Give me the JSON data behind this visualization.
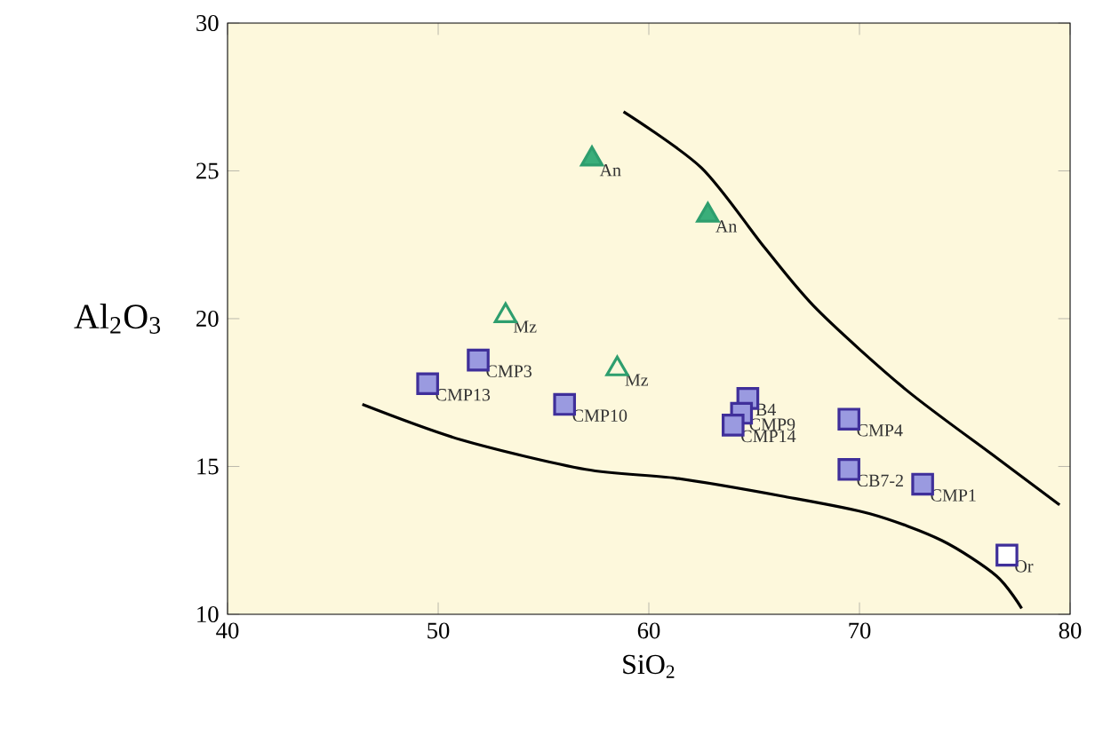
{
  "chart_data": {
    "type": "scatter",
    "xlabel": "SiO$_{2}$",
    "ylabel": "Al$_{2}$O$_{3}$",
    "xlim": [
      40,
      80
    ],
    "ylim": [
      10,
      30
    ],
    "xticks": [
      40,
      50,
      60,
      70,
      80
    ],
    "yticks": [
      10,
      15,
      20,
      25,
      30
    ],
    "grid": false,
    "marker": "square",
    "series": [
      {
        "color": "#3f2f9a",
        "colors": [
          "#9a9ae0",
          "#9a9ae0",
          "#9a9ae0",
          "#9a9ae0",
          "#9a9ae0",
          "#9a9ae0",
          "#9a9ae0",
          "#9a9ae0",
          "#9a9ae0",
          "#ffffff"
        ],
        "x": [
          49.5,
          51.9,
          56.0,
          64.7,
          64.4,
          64.0,
          69.5,
          69.5,
          73.0,
          77.0
        ],
        "values": [
          17.8,
          18.6,
          17.1,
          17.3,
          16.8,
          16.4,
          16.6,
          14.9,
          14.4,
          12.0
        ]
      },
      {
        "marker": "triangle",
        "color": "#2e9e6e",
        "colors": [
          "#3aae7a",
          "#3aae7a",
          "#fdf8dc",
          "#fdf8dc"
        ],
        "x": [
          57.3,
          62.8,
          53.2,
          58.5
        ],
        "values": [
          25.4,
          23.5,
          20.1,
          18.3
        ]
      },
      {
        "type": "line",
        "marker": "none",
        "line_style": "solid",
        "color": "#000000",
        "x": [
          58.8,
          62.5,
          65.5,
          68.0,
          72.2,
          76.5,
          79.5
        ],
        "values": [
          27.0,
          25.1,
          22.4,
          20.3,
          17.6,
          15.3,
          13.7
        ]
      },
      {
        "type": "line",
        "marker": "none",
        "line_style": "solid",
        "color": "#000000",
        "x": [
          46.4,
          51.1,
          57.0,
          61.3,
          66.3,
          70.5,
          73.9,
          76.5,
          77.7
        ],
        "values": [
          17.1,
          15.9,
          14.9,
          14.6,
          14.0,
          13.4,
          12.5,
          11.3,
          10.2
        ]
      }
    ],
    "annotations": [
      {
        "text": "CMP13",
        "x": 49.5,
        "y": 17.8
      },
      {
        "text": "CMP3",
        "x": 51.9,
        "y": 18.6
      },
      {
        "text": "CMP10",
        "x": 56.0,
        "y": 17.1
      },
      {
        "text": "B4",
        "x": 64.7,
        "y": 17.3
      },
      {
        "text": "CMP9",
        "x": 64.4,
        "y": 16.8
      },
      {
        "text": "CMP14",
        "x": 64.0,
        "y": 16.4
      },
      {
        "text": "CMP4",
        "x": 69.5,
        "y": 16.6
      },
      {
        "text": "CB7-2",
        "x": 69.5,
        "y": 14.9
      },
      {
        "text": "CMP1",
        "x": 73.0,
        "y": 14.4
      },
      {
        "text": "Or",
        "x": 77.0,
        "y": 12.0
      },
      {
        "text": "An",
        "x": 57.3,
        "y": 25.4
      },
      {
        "text": "An",
        "x": 62.8,
        "y": 23.5
      },
      {
        "text": "Mz",
        "x": 53.2,
        "y": 20.1
      },
      {
        "text": "Mz",
        "x": 58.5,
        "y": 18.3
      }
    ]
  }
}
